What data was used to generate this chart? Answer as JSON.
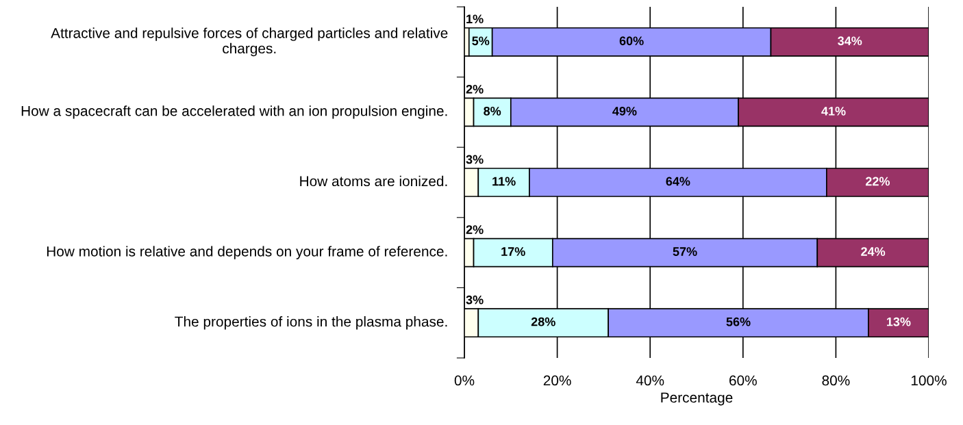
{
  "chart_data": {
    "type": "bar",
    "orientation": "horizontal",
    "stacked": true,
    "grid": "x",
    "legend": false,
    "xlabel": "Percentage",
    "categories": [
      "Attractive and repulsive forces of charged particles and relative charges.",
      "How a spacecraft can be accelerated with an ion propulsion engine.",
      "How atoms are ionized.",
      "How motion is relative and depends on your frame of reference.",
      "The properties of ions in the plasma phase."
    ],
    "series": [
      {
        "color": "#ffffee",
        "values": [
          1,
          2,
          3,
          2,
          3
        ],
        "value_labels": [
          "1%",
          "2%",
          "3%",
          "2%",
          "3%"
        ]
      },
      {
        "color": "#ccffff",
        "values": [
          5,
          8,
          11,
          17,
          28
        ],
        "value_labels": [
          "5%",
          "8%",
          "11%",
          "17%",
          "28%"
        ]
      },
      {
        "color": "#9999ff",
        "values": [
          60,
          49,
          64,
          57,
          56
        ],
        "value_labels": [
          "60%",
          "49%",
          "64%",
          "57%",
          "56%"
        ]
      },
      {
        "color": "#993366",
        "values": [
          34,
          41,
          22,
          24,
          13
        ],
        "value_labels": [
          "34%",
          "41%",
          "22%",
          "24%",
          "13%"
        ]
      }
    ],
    "xlim": [
      0,
      100
    ],
    "xticks": [
      {
        "value": 0,
        "label": "0%"
      },
      {
        "value": 20,
        "label": "20%"
      },
      {
        "value": 40,
        "label": "40%"
      },
      {
        "value": 60,
        "label": "60%"
      },
      {
        "value": 80,
        "label": "80%"
      },
      {
        "value": 100,
        "label": "100%"
      }
    ]
  }
}
